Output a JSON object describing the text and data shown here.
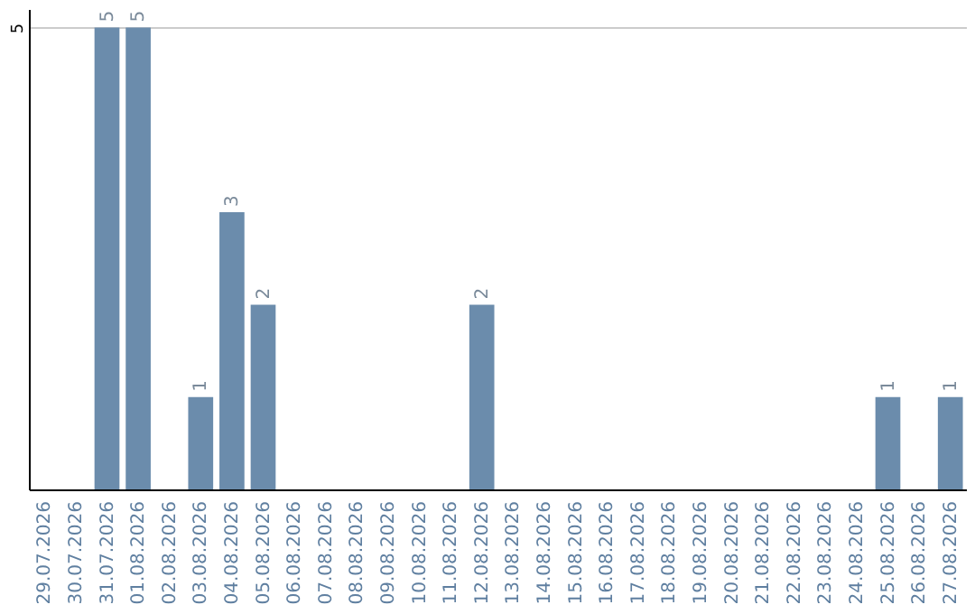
{
  "chart_data": {
    "type": "bar",
    "categories": [
      "29.07.2026",
      "30.07.2026",
      "31.07.2026",
      "01.08.2026",
      "02.08.2026",
      "03.08.2026",
      "04.08.2026",
      "05.08.2026",
      "06.08.2026",
      "07.08.2026",
      "08.08.2026",
      "09.08.2026",
      "10.08.2026",
      "11.08.2026",
      "12.08.2026",
      "13.08.2026",
      "14.08.2026",
      "15.08.2026",
      "16.08.2026",
      "17.08.2026",
      "18.08.2026",
      "19.08.2026",
      "20.08.2026",
      "21.08.2026",
      "22.08.2026",
      "23.08.2026",
      "24.08.2026",
      "25.08.2026",
      "26.08.2026",
      "27.08.2026"
    ],
    "values": [
      0,
      0,
      5,
      5,
      0,
      1,
      3,
      2,
      0,
      0,
      0,
      0,
      0,
      0,
      2,
      0,
      0,
      0,
      0,
      0,
      0,
      0,
      0,
      0,
      0,
      0,
      0,
      1,
      0,
      1
    ],
    "value_labels": [
      null,
      null,
      "5",
      "5",
      null,
      "1",
      "3",
      "2",
      null,
      null,
      null,
      null,
      null,
      null,
      "2",
      null,
      null,
      null,
      null,
      null,
      null,
      null,
      null,
      null,
      null,
      null,
      null,
      "1",
      null,
      "1"
    ],
    "color": "#6b8cac",
    "ylim": [
      0,
      5.2
    ],
    "yticks": [
      5
    ],
    "grid": "y"
  }
}
